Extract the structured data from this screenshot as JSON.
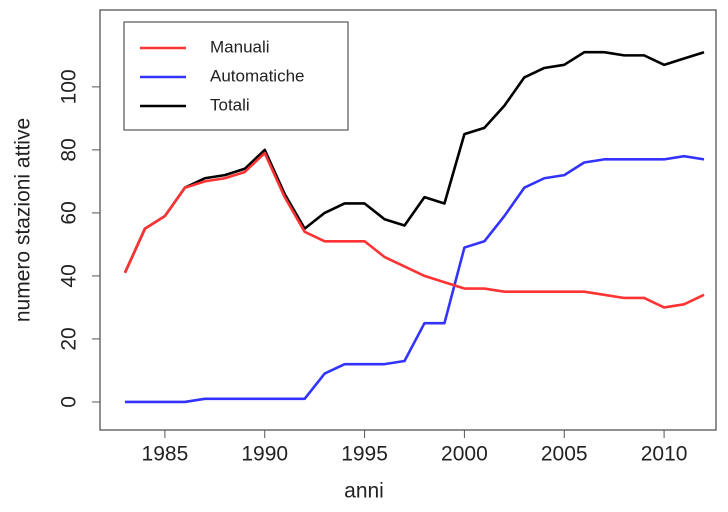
{
  "chart_data": {
    "type": "line",
    "x_label": "anni",
    "y_label": "numero stazioni attive",
    "x": [
      1983,
      1984,
      1985,
      1986,
      1987,
      1988,
      1989,
      1990,
      1991,
      1992,
      1993,
      1994,
      1995,
      1996,
      1997,
      1998,
      1999,
      2000,
      2001,
      2002,
      2003,
      2004,
      2005,
      2006,
      2007,
      2008,
      2009,
      2010,
      2011,
      2012
    ],
    "series": [
      {
        "name": "Totali",
        "color": "#000000",
        "values": [
          41,
          55,
          59,
          68,
          71,
          72,
          74,
          80,
          66,
          55,
          60,
          63,
          63,
          58,
          56,
          65,
          63,
          85,
          87,
          94,
          103,
          106,
          107,
          111,
          111,
          110,
          110,
          107,
          109,
          111
        ]
      },
      {
        "name": "Automatiche",
        "color": "#3333ff",
        "values": [
          0,
          0,
          0,
          0,
          1,
          1,
          1,
          1,
          1,
          1,
          9,
          12,
          12,
          12,
          13,
          25,
          25,
          49,
          51,
          59,
          68,
          71,
          72,
          76,
          77,
          77,
          77,
          77,
          78,
          77
        ]
      },
      {
        "name": "Manuali",
        "color": "#ff3333",
        "values": [
          41,
          55,
          59,
          68,
          70,
          71,
          73,
          79,
          65,
          54,
          51,
          51,
          51,
          46,
          43,
          40,
          38,
          36,
          36,
          35,
          35,
          35,
          35,
          35,
          34,
          33,
          33,
          30,
          31,
          34
        ]
      }
    ],
    "legend_order": [
      "Manuali",
      "Automatiche",
      "Totali"
    ],
    "legend": "top-left",
    "xlim": [
      1981.75,
      2012.6
    ],
    "xticks": [
      1985,
      1990,
      1995,
      2000,
      2005,
      2010
    ],
    "ylim": [
      -8.9,
      124.4
    ],
    "yticks": [
      0,
      20,
      40,
      60,
      80,
      100
    ]
  }
}
